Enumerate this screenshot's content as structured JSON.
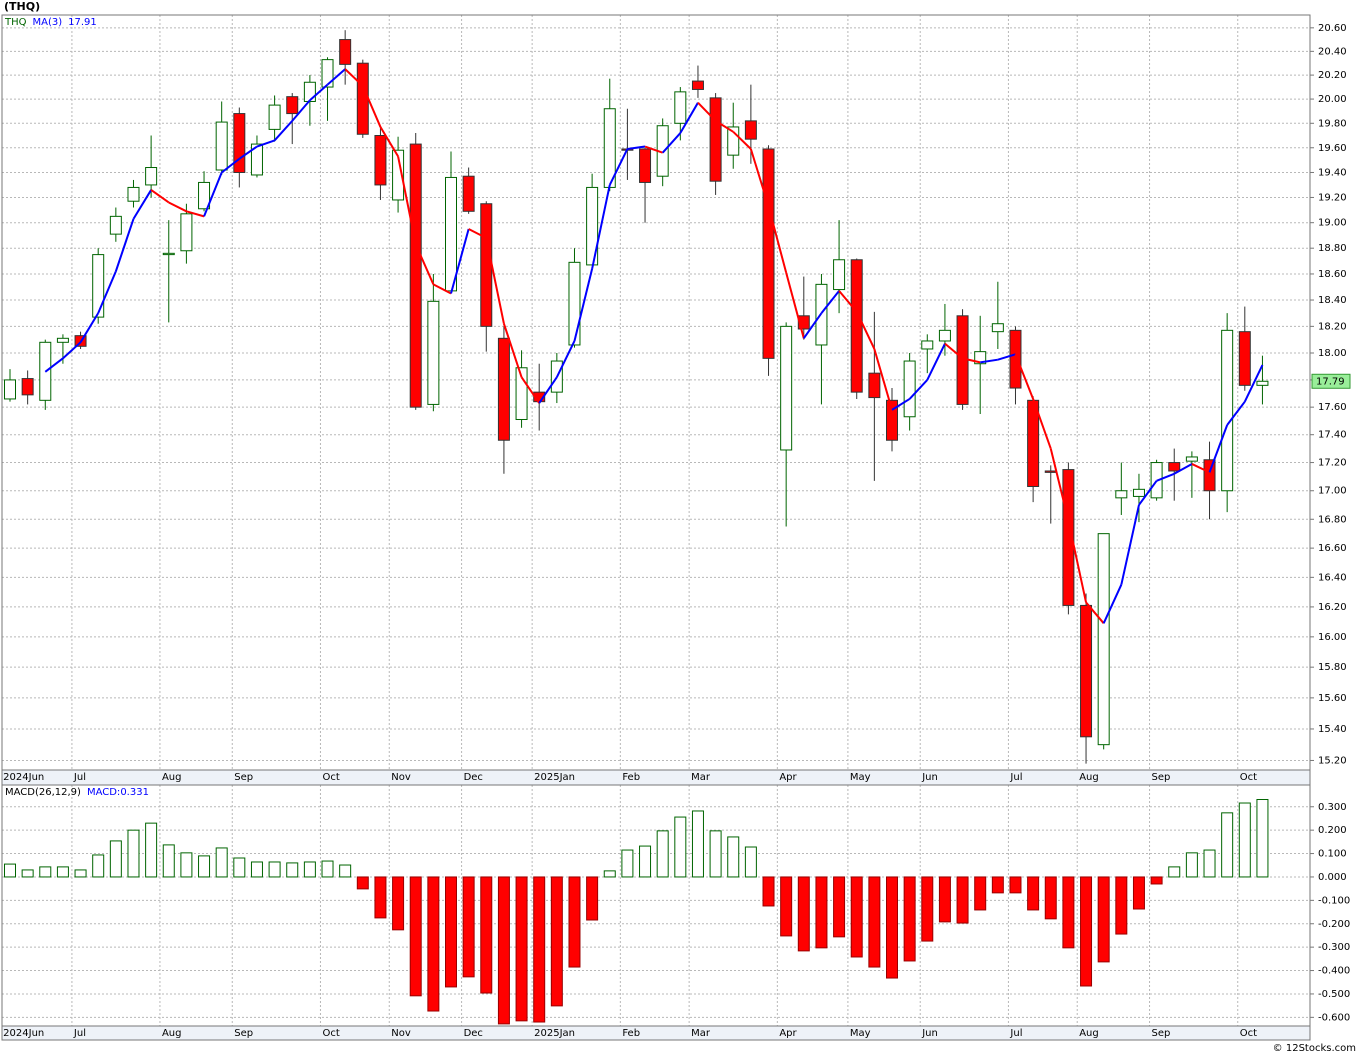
{
  "chart_data": [
    {
      "type": "candlestick",
      "title": "(THQ)",
      "symbol": "THQ",
      "log": true,
      "grid": true,
      "up_color": "#006400",
      "down_color": "#ff0000",
      "credit": "© 12Stocks.com",
      "open": [
        17.66,
        17.81,
        17.65,
        18.08,
        18.13,
        18.27,
        18.91,
        19.17,
        19.3,
        18.75,
        18.78,
        19.11,
        19.42,
        19.88,
        19.38,
        19.75,
        20.02,
        19.98,
        20.1,
        20.5,
        20.3,
        19.7,
        19.18,
        19.63,
        17.62,
        18.47,
        19.37,
        19.15,
        18.11,
        17.51,
        17.71,
        17.71,
        18.06,
        18.67,
        19.28,
        19.59,
        19.59,
        19.37,
        19.8,
        20.15,
        20.01,
        19.54,
        19.82,
        19.59,
        17.29,
        18.28,
        18.06,
        18.48,
        18.71,
        17.85,
        17.65,
        17.53,
        18.03,
        18.09,
        18.28,
        17.92,
        18.16,
        18.17,
        17.65,
        17.14,
        17.15,
        16.21,
        15.3,
        16.95,
        16.96,
        16.95,
        17.2,
        17.21,
        17.22,
        17.0,
        18.16,
        17.76
      ],
      "high": [
        17.88,
        17.87,
        18.1,
        18.14,
        18.16,
        18.8,
        19.12,
        19.34,
        19.7,
        19.02,
        19.15,
        19.41,
        19.98,
        19.93,
        19.7,
        20.03,
        20.05,
        20.2,
        20.35,
        20.58,
        20.33,
        19.78,
        19.69,
        19.72,
        18.6,
        19.57,
        19.44,
        19.17,
        18.2,
        18.02,
        17.92,
        18.0,
        18.8,
        19.39,
        20.17,
        19.92,
        19.6,
        19.84,
        20.1,
        20.28,
        20.05,
        19.97,
        20.12,
        19.62,
        18.23,
        18.58,
        18.6,
        19.02,
        18.72,
        18.31,
        17.74,
        18.0,
        18.14,
        18.37,
        18.33,
        18.28,
        18.54,
        18.2,
        17.68,
        17.18,
        17.2,
        16.29,
        16.7,
        17.2,
        17.12,
        17.22,
        17.3,
        17.28,
        17.35,
        18.3,
        18.35,
        17.98
      ],
      "low": [
        17.64,
        17.62,
        17.58,
        17.92,
        18.03,
        18.22,
        18.85,
        19.12,
        19.2,
        18.23,
        18.68,
        19.09,
        19.38,
        19.28,
        19.36,
        19.65,
        19.63,
        19.78,
        19.82,
        20.12,
        19.68,
        19.18,
        19.08,
        17.58,
        17.57,
        18.45,
        19.07,
        18.01,
        17.12,
        17.45,
        17.43,
        17.63,
        18.04,
        18.67,
        19.25,
        19.34,
        19.0,
        19.29,
        19.66,
        20.01,
        19.22,
        19.43,
        19.47,
        17.83,
        16.75,
        18.1,
        17.62,
        18.3,
        17.66,
        17.07,
        17.28,
        17.43,
        17.85,
        17.98,
        17.58,
        17.55,
        18.03,
        17.62,
        16.92,
        16.77,
        16.15,
        15.18,
        15.27,
        16.83,
        16.78,
        16.93,
        16.93,
        16.95,
        16.8,
        16.85,
        17.72,
        17.62
      ],
      "close": [
        17.8,
        17.69,
        18.08,
        18.11,
        18.05,
        18.75,
        19.05,
        19.28,
        19.44,
        18.76,
        19.07,
        19.32,
        19.81,
        19.4,
        19.63,
        19.95,
        19.88,
        20.14,
        20.33,
        20.29,
        19.71,
        19.3,
        19.58,
        17.6,
        18.39,
        19.36,
        19.09,
        18.2,
        17.36,
        17.89,
        17.64,
        17.94,
        18.69,
        19.28,
        19.92,
        19.58,
        19.32,
        19.78,
        20.06,
        20.08,
        19.33,
        19.77,
        19.67,
        17.96,
        18.2,
        18.18,
        18.52,
        18.71,
        17.71,
        17.67,
        17.36,
        17.94,
        18.09,
        18.17,
        17.62,
        18.01,
        18.22,
        17.74,
        17.03,
        17.13,
        16.21,
        15.35,
        16.7,
        17.0,
        17.01,
        17.2,
        17.14,
        17.24,
        17.0,
        18.17,
        17.76,
        17.79
      ],
      "ma": {
        "name": "MA(3)",
        "up_color": "#0000ff",
        "down_color": "#ff0000",
        "values": [
          null,
          null,
          17.86,
          17.96,
          18.08,
          18.3,
          18.62,
          19.03,
          19.26,
          19.16,
          19.09,
          19.05,
          19.4,
          19.51,
          19.61,
          19.66,
          19.82,
          19.99,
          20.12,
          20.25,
          20.11,
          19.77,
          19.53,
          18.83,
          18.52,
          18.45,
          18.95,
          18.88,
          18.22,
          17.82,
          17.63,
          17.82,
          18.09,
          18.64,
          19.3,
          19.59,
          19.61,
          19.56,
          19.72,
          19.97,
          19.82,
          19.73,
          19.59,
          19.13,
          18.61,
          18.11,
          18.3,
          18.47,
          18.31,
          18.03,
          17.58,
          17.66,
          17.8,
          18.07,
          17.96,
          17.93,
          17.95,
          17.99,
          17.66,
          17.3,
          16.79,
          16.23,
          16.09,
          16.35,
          16.9,
          17.07,
          17.12,
          17.19,
          17.13,
          17.47,
          17.64,
          17.91
        ]
      },
      "xticks": [
        {
          "value": -0.5,
          "label": "2024Jun"
        },
        {
          "value": 3.51,
          "label": "Jul"
        },
        {
          "value": 8.5,
          "label": "Aug"
        },
        {
          "value": 12.6,
          "label": "Sep"
        },
        {
          "value": 17.6,
          "label": "Oct"
        },
        {
          "value": 21.5,
          "label": "Nov"
        },
        {
          "value": 25.6,
          "label": "Dec"
        },
        {
          "value": 29.6,
          "label": "2025Jan"
        },
        {
          "value": 34.6,
          "label": "Feb"
        },
        {
          "value": 38.5,
          "label": "Mar"
        },
        {
          "value": 43.5,
          "label": "Apr"
        },
        {
          "value": 47.5,
          "label": "May"
        },
        {
          "value": 51.6,
          "label": "Jun"
        },
        {
          "value": 56.6,
          "label": "Jul"
        },
        {
          "value": 60.5,
          "label": "Aug"
        },
        {
          "value": 64.6,
          "label": "Sep"
        },
        {
          "value": 69.6,
          "label": "Oct"
        }
      ],
      "ylim": [
        15.14,
        20.71
      ],
      "yticks": [
        {
          "value": 20.6,
          "label": "20.60"
        },
        {
          "value": 20.4,
          "label": "20.40"
        },
        {
          "value": 20.2,
          "label": "20.20"
        },
        {
          "value": 20.0,
          "label": "20.00"
        },
        {
          "value": 19.8,
          "label": "19.80"
        },
        {
          "value": 19.6,
          "label": "19.60"
        },
        {
          "value": 19.4,
          "label": "19.40"
        },
        {
          "value": 19.2,
          "label": "19.20"
        },
        {
          "value": 19.0,
          "label": "19.00"
        },
        {
          "value": 18.8,
          "label": "18.80"
        },
        {
          "value": 18.6,
          "label": "18.60"
        },
        {
          "value": 18.4,
          "label": "18.40"
        },
        {
          "value": 18.2,
          "label": "18.20"
        },
        {
          "value": 18.0,
          "label": "18.00"
        },
        {
          "value": 17.8,
          "label": "17.80"
        },
        {
          "value": 17.6,
          "label": "17.60"
        },
        {
          "value": 17.4,
          "label": "17.40"
        },
        {
          "value": 17.2,
          "label": "17.20"
        },
        {
          "value": 17.0,
          "label": "17.00"
        },
        {
          "value": 16.8,
          "label": "16.80"
        },
        {
          "value": 16.6,
          "label": "16.60"
        },
        {
          "value": 16.4,
          "label": "16.40"
        },
        {
          "value": 16.2,
          "label": "16.20"
        },
        {
          "value": 16.0,
          "label": "16.00"
        },
        {
          "value": 15.8,
          "label": "15.80"
        },
        {
          "value": 15.6,
          "label": "15.60"
        },
        {
          "value": 15.4,
          "label": "15.40"
        },
        {
          "value": 15.2,
          "label": "15.20"
        }
      ]
    },
    {
      "type": "bar",
      "name": "MACD(26,12,9)",
      "current_label": "MACD:",
      "grid": true,
      "pos_color": "#006400",
      "neg_color": "#ff0000",
      "values": [
        0.055,
        0.03,
        0.043,
        0.043,
        0.03,
        0.094,
        0.154,
        0.2,
        0.23,
        0.137,
        0.103,
        0.09,
        0.124,
        0.081,
        0.064,
        0.064,
        0.06,
        0.064,
        0.068,
        0.051,
        -0.051,
        -0.175,
        -0.226,
        -0.508,
        -0.573,
        -0.47,
        -0.427,
        -0.496,
        -0.628,
        -0.615,
        -0.62,
        -0.551,
        -0.385,
        -0.184,
        0.026,
        0.115,
        0.132,
        0.197,
        0.256,
        0.282,
        0.197,
        0.171,
        0.128,
        -0.124,
        -0.252,
        -0.316,
        -0.303,
        -0.256,
        -0.342,
        -0.385,
        -0.432,
        -0.359,
        -0.274,
        -0.192,
        -0.197,
        -0.141,
        -0.068,
        -0.068,
        -0.141,
        -0.179,
        -0.303,
        -0.466,
        -0.363,
        -0.244,
        -0.137,
        -0.03,
        0.043,
        0.103,
        0.115,
        0.274,
        0.316,
        0.331
      ],
      "ylim": [
        -0.637,
        0.393
      ],
      "yticks": [
        {
          "value": 0.3,
          "label": "0.300"
        },
        {
          "value": 0.2,
          "label": "0.200"
        },
        {
          "value": 0.1,
          "label": "0.100"
        },
        {
          "value": 0.0,
          "label": "0.000"
        },
        {
          "value": -0.1,
          "label": "-0.100"
        },
        {
          "value": -0.2,
          "label": "-0.200"
        },
        {
          "value": -0.3,
          "label": "-0.300"
        },
        {
          "value": -0.4,
          "label": "-0.400"
        },
        {
          "value": -0.5,
          "label": "-0.500"
        },
        {
          "value": -0.6,
          "label": "-0.600"
        }
      ]
    }
  ]
}
